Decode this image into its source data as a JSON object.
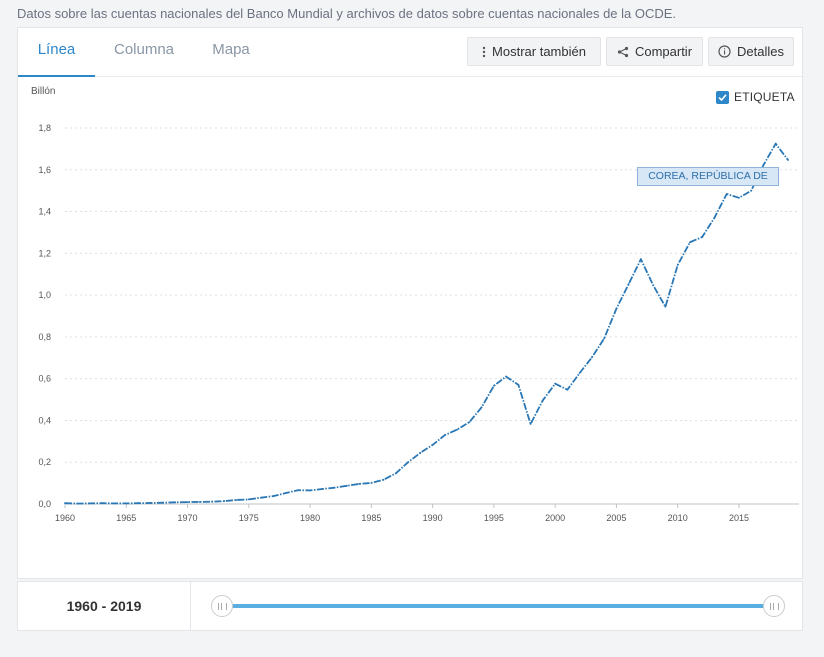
{
  "source_text": "Datos sobre las cuentas nacionales del Banco Mundial y archivos de datos sobre cuentas nacionales de la OCDE.",
  "tabs": [
    {
      "label": "Línea",
      "active": true
    },
    {
      "label": "Columna",
      "active": false
    },
    {
      "label": "Mapa",
      "active": false
    }
  ],
  "toolbar": {
    "show_also_label": "Mostrar también",
    "share_label": "Compartir",
    "details_label": "Detalles"
  },
  "legend": {
    "checkbox_label": "ETIQUETA",
    "checked": true
  },
  "tooltip": {
    "text": "COREA, REPÚBLICA DE"
  },
  "footer": {
    "range_start": "1960",
    "range_sep": " - ",
    "range_end": "2019"
  },
  "colors": {
    "accent": "#2e87c8",
    "series": "#2a77b5",
    "slider": "#5aaee0"
  },
  "chart_data": {
    "type": "line",
    "ylabel": "Billón",
    "ylim": [
      0,
      1.8
    ],
    "xlim": [
      1960,
      2019
    ],
    "y_ticks": [
      0.0,
      0.2,
      0.4,
      0.6,
      0.8,
      1.0,
      1.2,
      1.4,
      1.6,
      1.8
    ],
    "y_tick_labels": [
      "0,0",
      "0,2",
      "0,4",
      "0,6",
      "0,8",
      "1,0",
      "1,2",
      "1,4",
      "1,6",
      "1,8"
    ],
    "x_ticks": [
      1960,
      1965,
      1970,
      1975,
      1980,
      1985,
      1990,
      1995,
      2000,
      2005,
      2010,
      2015
    ],
    "grid": "horizontal dashed",
    "legend_position": "top-right",
    "series": [
      {
        "name": "COREA, REPÚBLICA DE",
        "x": [
          1960,
          1961,
          1962,
          1963,
          1964,
          1965,
          1966,
          1967,
          1968,
          1969,
          1970,
          1971,
          1972,
          1973,
          1974,
          1975,
          1976,
          1977,
          1978,
          1979,
          1980,
          1981,
          1982,
          1983,
          1984,
          1985,
          1986,
          1987,
          1988,
          1989,
          1990,
          1991,
          1992,
          1993,
          1994,
          1995,
          1996,
          1997,
          1998,
          1999,
          2000,
          2001,
          2002,
          2003,
          2004,
          2005,
          2006,
          2007,
          2008,
          2009,
          2010,
          2011,
          2012,
          2013,
          2014,
          2015,
          2016,
          2017,
          2018,
          2019
        ],
        "values": [
          0.004,
          0.002,
          0.003,
          0.004,
          0.003,
          0.003,
          0.004,
          0.005,
          0.006,
          0.008,
          0.009,
          0.01,
          0.011,
          0.014,
          0.019,
          0.022,
          0.03,
          0.038,
          0.052,
          0.066,
          0.065,
          0.072,
          0.078,
          0.087,
          0.096,
          0.101,
          0.116,
          0.147,
          0.2,
          0.245,
          0.283,
          0.33,
          0.356,
          0.392,
          0.463,
          0.566,
          0.61,
          0.57,
          0.383,
          0.497,
          0.576,
          0.547,
          0.627,
          0.702,
          0.793,
          0.935,
          1.053,
          1.172,
          1.047,
          0.944,
          1.144,
          1.253,
          1.278,
          1.37,
          1.484,
          1.466,
          1.5,
          1.623,
          1.725,
          1.647
        ]
      }
    ]
  }
}
